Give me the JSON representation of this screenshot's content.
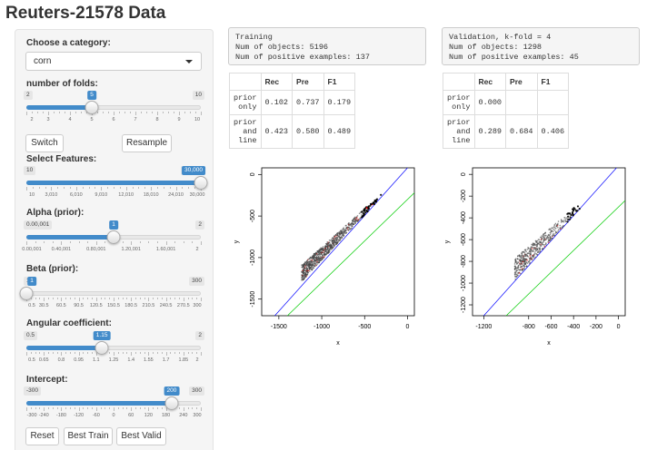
{
  "page_title": "Reuters-21578 Data",
  "sidebar": {
    "category": {
      "label": "Choose a category:",
      "value": "corn"
    },
    "folds": {
      "label": "number of folds:",
      "min": "2",
      "max": "10",
      "value": "5",
      "fraction": 0.375,
      "ticks": [
        "2",
        "3",
        "4",
        "5",
        "6",
        "7",
        "8",
        "9",
        "10"
      ]
    },
    "switch_label": "Switch",
    "resample_label": "Resample",
    "features": {
      "label": "Select Features:",
      "min": "10",
      "max": "30,000",
      "value": "30,000",
      "fraction": 1.0,
      "ticks": [
        "10",
        "3,010",
        "6,010",
        "9,010",
        "12,010",
        "18,010",
        "24,010",
        "30,000"
      ]
    },
    "alpha": {
      "label": "Alpha (prior):",
      "min": "0.00,001",
      "max": "2",
      "value": "1",
      "fraction": 0.5,
      "ticks": [
        "0.00,001",
        "0.40,001",
        "0.80,001",
        "1.20,001",
        "1.60,001",
        "2"
      ]
    },
    "beta": {
      "label": "Beta (prior):",
      "min": "1",
      "max": "300",
      "value": "1",
      "fraction": 0.0,
      "ticks": [
        "0.5",
        "30.5",
        "60.5",
        "90.5",
        "120.5",
        "150.5",
        "180.5",
        "210.5",
        "240.5",
        "270.5",
        "300"
      ]
    },
    "angular": {
      "label": "Angular coefficient:",
      "min": "0.5",
      "max": "2",
      "value": "1.15",
      "fraction": 0.433,
      "ticks": [
        "0.5",
        "0.65",
        "0.8",
        "0.95",
        "1.1",
        "1.25",
        "1.4",
        "1.55",
        "1.7",
        "1.85",
        "2"
      ]
    },
    "intercept": {
      "label": "Intercept:",
      "min": "-300",
      "max": "300",
      "value": "200",
      "fraction": 0.833,
      "ticks": [
        "-300",
        "-240",
        "-180",
        "-120",
        "-60",
        "0",
        "60",
        "120",
        "180",
        "240",
        "300"
      ]
    },
    "reset_label": "Reset",
    "best_train_label": "Best Train",
    "best_valid_label": "Best Valid"
  },
  "training": {
    "line1": "Training",
    "line2": "Num of objects: 5196",
    "line3": "Num of positive examples: 137",
    "headers": [
      "",
      "Rec",
      "Pre",
      "F1"
    ],
    "rows": [
      [
        "prior only",
        "0.102",
        "0.737",
        "0.179"
      ],
      [
        "prior and line",
        "0.423",
        "0.580",
        "0.489"
      ]
    ]
  },
  "validation": {
    "line1": "Validation, k-fold = 4",
    "line2": "Num of objects: 1298",
    "line3": "Num of positive examples: 45",
    "headers": [
      "",
      "Rec",
      "Pre",
      "F1"
    ],
    "rows": [
      [
        "prior only",
        "0.000",
        "",
        ""
      ],
      [
        "prior and line",
        "0.289",
        "0.684",
        "0.406"
      ]
    ]
  },
  "plots": {
    "train": {
      "xlabel": "x",
      "ylabel": "y",
      "xticks": [
        "-1500",
        "-1000",
        "-500",
        "0"
      ],
      "yticks": [
        "0",
        "-500",
        "-1000",
        "-1500"
      ]
    },
    "valid": {
      "xlabel": "x",
      "ylabel": "y",
      "xticks": [
        "-1200",
        "-800",
        "-600",
        "-400",
        "-200",
        "0"
      ],
      "yticks": [
        "0",
        "-200",
        "-400",
        "-600",
        "-800",
        "-1000",
        "-1200"
      ]
    }
  },
  "colors": {
    "accent": "#428bca",
    "blue_line": "#0000ff",
    "green_line": "#00cc00",
    "positive": "#ff0000"
  }
}
